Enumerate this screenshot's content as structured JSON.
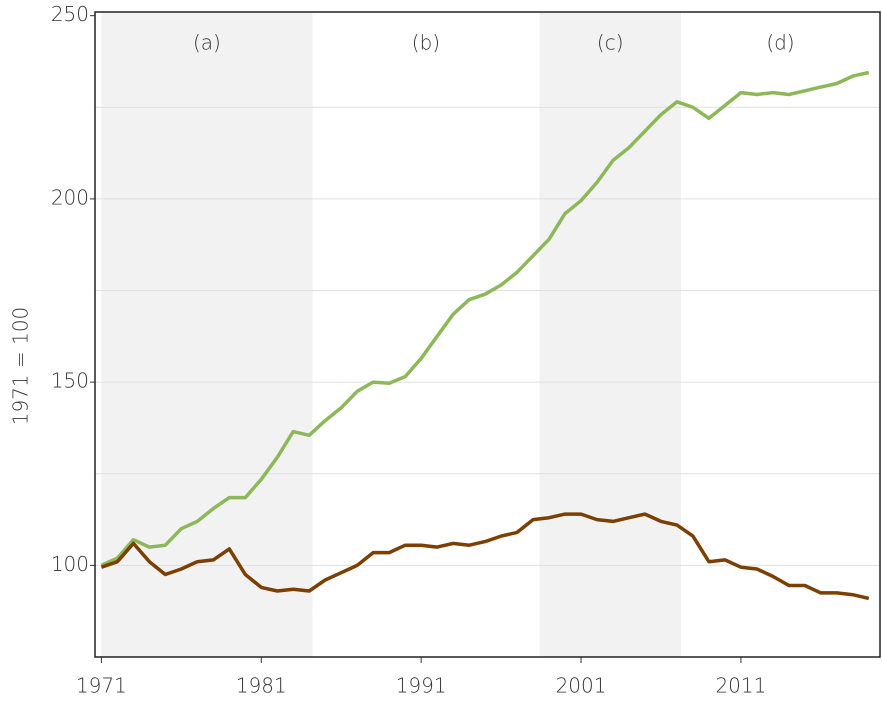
{
  "chart_data": {
    "type": "line",
    "ylabel": "1971 = 100",
    "x": [
      1971,
      1972,
      1973,
      1974,
      1975,
      1976,
      1977,
      1978,
      1979,
      1980,
      1981,
      1982,
      1983,
      1984,
      1985,
      1986,
      1987,
      1988,
      1989,
      1990,
      1991,
      1992,
      1993,
      1994,
      1995,
      1996,
      1997,
      1998,
      1999,
      2000,
      2001,
      2002,
      2003,
      2004,
      2005,
      2006,
      2007,
      2008,
      2009,
      2010,
      2011,
      2012,
      2013,
      2014,
      2015,
      2016,
      2017,
      2018,
      2019
    ],
    "series": [
      {
        "color": "#8db85a",
        "values": [
          100,
          102,
          107,
          105,
          105.5,
          110,
          112,
          115.5,
          118.5,
          118.5,
          123.5,
          129.5,
          136.5,
          135.5,
          139.5,
          143,
          147.5,
          150,
          149.7,
          151.5,
          156.5,
          162.5,
          168.5,
          172.5,
          174,
          176.5,
          180,
          184.5,
          189,
          196,
          199.5,
          204.5,
          210.5,
          214,
          218.5,
          223,
          226.5,
          225,
          222,
          225.5,
          229,
          228.5,
          229,
          228.5,
          229.5,
          230.5,
          231.5,
          233.5,
          234.5
        ]
      },
      {
        "color": "#7b3f00",
        "values": [
          99.5,
          101,
          106,
          101,
          97.5,
          99,
          101,
          101.5,
          104.5,
          97.5,
          94,
          93,
          93.5,
          93,
          96,
          98,
          100,
          103.5,
          103.5,
          105.5,
          105.5,
          105,
          106,
          105.5,
          106.5,
          108,
          109,
          112.5,
          113,
          114,
          114,
          112.5,
          112,
          113,
          114,
          112,
          111,
          108,
          101,
          101.5,
          99.5,
          99,
          97,
          94.5,
          94.5,
          92.5,
          92.5,
          92,
          91
        ]
      }
    ],
    "periods": [
      {
        "label": "(a)",
        "start": 1971,
        "end": 1984.2,
        "shaded": true
      },
      {
        "label": "(b)",
        "start": 1984.2,
        "end": 1998.4,
        "shaded": false
      },
      {
        "label": "(c)",
        "start": 1998.4,
        "end": 2007.25,
        "shaded": true
      },
      {
        "label": "(d)",
        "start": 2007.25,
        "end": 2019.7,
        "shaded": false
      }
    ],
    "shade_color": "#f2f2f2",
    "xlim": [
      1970.6,
      2019.7
    ],
    "xticks": [
      1971,
      1981,
      1991,
      2001,
      2011
    ],
    "ylim": [
      75,
      251
    ],
    "yticks": [
      100,
      150,
      200,
      250
    ],
    "grid_yticks": [
      100,
      125,
      150,
      175,
      200,
      225
    ],
    "grid": true
  }
}
